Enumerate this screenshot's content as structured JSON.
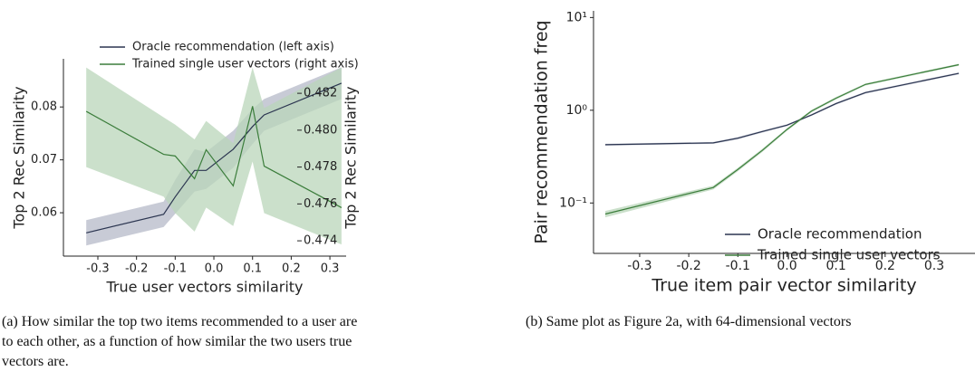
{
  "chart_data": [
    {
      "type": "line",
      "x_label": "True user vectors similarity",
      "y_label": "Top 2 Rec Similarity",
      "y2_label": "Top 2 Rec Similarity",
      "caption": [
        "(a) How similar the top two items recommended to a user are",
        "to each other, as a function of how similar the two users true",
        "vectors are."
      ],
      "x": [
        -0.33,
        -0.13,
        -0.1,
        -0.05,
        -0.02,
        0.05,
        0.1,
        0.13,
        0.33
      ],
      "xlim": [
        -0.389,
        0.342
      ],
      "xticks": [
        {
          "value": -0.3,
          "label": "-0.3"
        },
        {
          "value": -0.2,
          "label": "-0.2"
        },
        {
          "value": -0.1,
          "label": "-0.1"
        },
        {
          "value": 0,
          "label": "0.0"
        },
        {
          "value": 0.1,
          "label": "0.1"
        },
        {
          "value": 0.2,
          "label": "0.2"
        },
        {
          "value": 0.3,
          "label": "0.3"
        }
      ],
      "ylim": [
        0.0518,
        0.0891
      ],
      "yticks": [
        {
          "value": 0.06,
          "label": "0.06"
        },
        {
          "value": 0.07,
          "label": "0.07"
        },
        {
          "value": 0.08,
          "label": "0.08"
        }
      ],
      "y2lim": [
        0.47317,
        0.48387
      ],
      "y2ticks": [
        {
          "value": 0.474,
          "label": "0.474"
        },
        {
          "value": 0.476,
          "label": "0.476"
        },
        {
          "value": 0.478,
          "label": "0.478"
        },
        {
          "value": 0.48,
          "label": "0.480"
        },
        {
          "value": 0.482,
          "label": "0.482"
        }
      ],
      "legend": "upper center",
      "series": [
        {
          "name": "Oracle recommendation (left axis)",
          "color": "#2b3550",
          "band_color": "#b5bac8",
          "values": [
            0.0562,
            0.0597,
            0.063,
            0.068,
            0.068,
            0.072,
            0.0763,
            0.0785,
            0.0845
          ],
          "lower": [
            0.0538,
            0.0573,
            0.0598,
            0.064,
            0.0645,
            0.0685,
            0.073,
            0.0755,
            0.0815
          ],
          "upper": [
            0.0586,
            0.0621,
            0.0662,
            0.072,
            0.0715,
            0.0755,
            0.0796,
            0.0815,
            0.0875
          ]
        },
        {
          "name": "Trained single user vectors (right axis)",
          "color": "#3b7d3b",
          "band_color": "#b9d6b9",
          "axis": "y2",
          "values": [
            0.48102,
            0.47869,
            0.4786,
            0.47737,
            0.47894,
            0.47698,
            0.4813,
            0.47805,
            0.4758
          ],
          "lower": [
            0.478,
            0.4764,
            0.4755,
            0.4745,
            0.4758,
            0.4748,
            0.4783,
            0.4755,
            0.4738
          ],
          "upper": [
            0.4834,
            0.4807,
            0.4803,
            0.4795,
            0.4805,
            0.4793,
            0.4834,
            0.4812,
            0.4834
          ]
        }
      ]
    },
    {
      "type": "line",
      "x_label": "True item pair vector similarity",
      "y_label": "Pair recommendation freq",
      "caption": [
        "(b) Same plot as Figure 2a, with 64-dimensional vectors"
      ],
      "x": [
        -0.37,
        -0.15,
        -0.1,
        -0.05,
        0,
        0.05,
        0.1,
        0.16,
        0.35
      ],
      "xlim": [
        -0.394,
        0.383
      ],
      "xticks": [
        {
          "value": -0.3,
          "label": "-0.3"
        },
        {
          "value": -0.2,
          "label": "-0.2"
        },
        {
          "value": -0.1,
          "label": "-0.1"
        },
        {
          "value": 0,
          "label": "0.0"
        },
        {
          "value": 0.1,
          "label": "0.1"
        },
        {
          "value": 0.2,
          "label": "0.2"
        },
        {
          "value": 0.3,
          "label": "0.3"
        }
      ],
      "log_y": true,
      "ylim": [
        0.0286,
        11.8
      ],
      "yticks": [
        {
          "value": 0.1,
          "label": "10⁻¹"
        },
        {
          "value": 1,
          "label": "10⁰"
        },
        {
          "value": 10,
          "label": "10¹"
        }
      ],
      "legend": "lower right",
      "series": [
        {
          "name": "Oracle recommendation",
          "color": "#2b3550",
          "band_color": "#b5bac8",
          "values": [
            0.425,
            0.445,
            0.5,
            0.59,
            0.69,
            0.89,
            1.18,
            1.55,
            2.5
          ],
          "lower": [
            0.415,
            0.435,
            0.485,
            0.575,
            0.675,
            0.87,
            1.15,
            1.51,
            2.44
          ],
          "upper": [
            0.435,
            0.455,
            0.515,
            0.605,
            0.705,
            0.91,
            1.21,
            1.59,
            2.56
          ]
        },
        {
          "name": "Trained single user vectors",
          "color": "#3b7d3b",
          "band_color": "#b9d6b9",
          "values": [
            0.076,
            0.147,
            0.23,
            0.37,
            0.62,
            0.98,
            1.35,
            1.9,
            3.1
          ],
          "lower": [
            0.07,
            0.14,
            0.22,
            0.355,
            0.6,
            0.95,
            1.31,
            1.85,
            3.02
          ],
          "upper": [
            0.082,
            0.154,
            0.24,
            0.385,
            0.64,
            1.01,
            1.39,
            1.95,
            3.18
          ]
        }
      ]
    }
  ]
}
